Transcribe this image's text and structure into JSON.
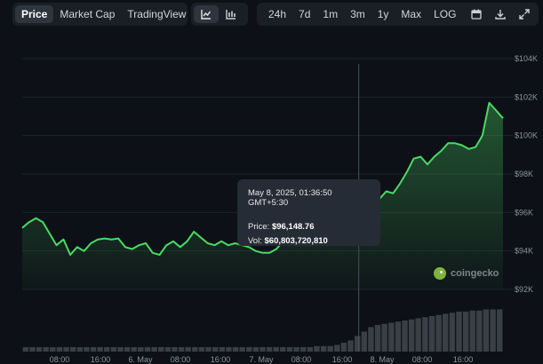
{
  "toolbar": {
    "tabs": [
      {
        "label": "Price",
        "active": true
      },
      {
        "label": "Market Cap",
        "active": false
      },
      {
        "label": "TradingView",
        "active": false
      }
    ],
    "chart_type_icons": [
      "line-chart-icon",
      "candlestick-chart-icon"
    ],
    "ranges": [
      "24h",
      "7d",
      "1m",
      "3m",
      "1y",
      "Max",
      "LOG"
    ],
    "tool_icons": [
      "calendar-icon",
      "download-icon",
      "expand-icon"
    ]
  },
  "tooltip": {
    "date": "May 8, 2025, 01:36:50 GMT+5:30",
    "price_label": "Price:",
    "price_value": "$96,148.76",
    "vol_label": "Vol:",
    "vol_value": "$60,803,720,810"
  },
  "watermark": "coingecko",
  "colors": {
    "line": "#4cd964",
    "background": "#0d1117",
    "volume": "#3a3f47"
  },
  "chart_data": {
    "type": "line",
    "y_axis_labels": [
      "$104K",
      "$102K",
      "$100K",
      "$98K",
      "$96K",
      "$94K",
      "$92K"
    ],
    "x_axis_labels": [
      "08:00",
      "16:00",
      "6. May",
      "08:00",
      "16:00",
      "7. May",
      "08:00",
      "16:00",
      "8. May",
      "08:00",
      "16:00"
    ],
    "ylim": [
      91200,
      104800
    ],
    "price_series": [
      [
        0,
        95200
      ],
      [
        1,
        95500
      ],
      [
        2,
        95700
      ],
      [
        3,
        95500
      ],
      [
        4,
        94900
      ],
      [
        5,
        94300
      ],
      [
        6,
        94600
      ],
      [
        7,
        93800
      ],
      [
        8,
        94200
      ],
      [
        9,
        94000
      ],
      [
        10,
        94400
      ],
      [
        11,
        94600
      ],
      [
        12,
        94650
      ],
      [
        13,
        94600
      ],
      [
        14,
        94650
      ],
      [
        15,
        94200
      ],
      [
        16,
        94100
      ],
      [
        17,
        94300
      ],
      [
        18,
        94400
      ],
      [
        19,
        93900
      ],
      [
        20,
        93800
      ],
      [
        21,
        94300
      ],
      [
        22,
        94500
      ],
      [
        23,
        94200
      ],
      [
        24,
        94500
      ],
      [
        25,
        95000
      ],
      [
        26,
        94700
      ],
      [
        27,
        94400
      ],
      [
        28,
        94300
      ],
      [
        29,
        94500
      ],
      [
        30,
        94300
      ],
      [
        31,
        94400
      ],
      [
        32,
        94300
      ],
      [
        33,
        94200
      ],
      [
        34,
        94000
      ],
      [
        35,
        93900
      ],
      [
        36,
        93900
      ],
      [
        37,
        94100
      ],
      [
        38,
        94500
      ],
      [
        39,
        94800
      ],
      [
        40,
        95100
      ],
      [
        41,
        95400
      ],
      [
        42,
        95600
      ],
      [
        43,
        95700
      ],
      [
        44,
        95800
      ],
      [
        45,
        95900
      ],
      [
        46,
        95900
      ],
      [
        47,
        96000
      ],
      [
        48,
        96100
      ],
      [
        49,
        96148.76
      ],
      [
        50,
        95900
      ],
      [
        51,
        96300
      ],
      [
        52,
        96700
      ],
      [
        53,
        97100
      ],
      [
        54,
        97000
      ],
      [
        55,
        97500
      ],
      [
        56,
        98100
      ],
      [
        57,
        98800
      ],
      [
        58,
        98900
      ],
      [
        59,
        98500
      ],
      [
        60,
        98900
      ],
      [
        61,
        99200
      ],
      [
        62,
        99600
      ],
      [
        63,
        99600
      ],
      [
        64,
        99500
      ],
      [
        65,
        99300
      ],
      [
        66,
        99400
      ],
      [
        67,
        100000
      ],
      [
        68,
        101700
      ],
      [
        69,
        101300
      ],
      [
        70,
        100900
      ]
    ],
    "hover_index": 49,
    "volume_series": [
      4,
      4,
      4,
      4,
      4,
      4,
      4,
      4,
      4,
      4,
      4,
      4,
      4,
      4,
      4,
      4,
      4,
      4,
      4,
      4,
      4,
      4,
      4,
      4,
      4,
      4,
      4,
      4,
      4,
      4,
      4,
      4,
      4,
      4,
      4,
      4,
      4,
      4,
      4,
      4,
      4,
      4,
      4,
      5,
      5,
      5,
      6,
      8,
      10,
      14,
      18,
      22,
      24,
      25,
      26,
      27,
      28,
      29,
      30,
      31,
      32,
      33,
      34,
      35,
      36,
      36,
      37,
      37,
      38,
      38,
      38
    ],
    "volume_max": 40
  }
}
